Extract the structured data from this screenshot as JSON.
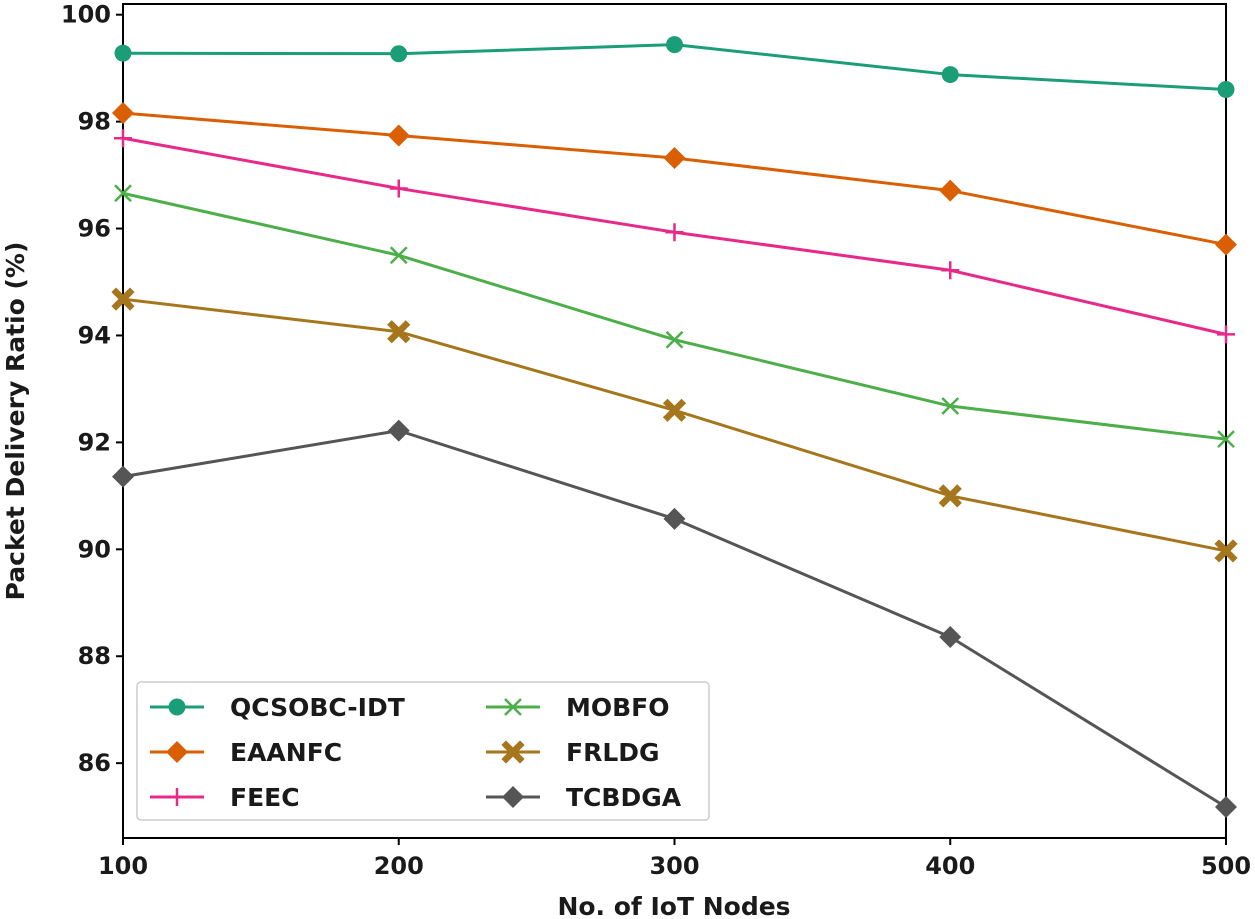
{
  "chart_data": {
    "type": "line",
    "title": "",
    "xlabel": "No. of IoT Nodes",
    "ylabel": "Packet Delivery Ratio (%)",
    "x": [
      100,
      200,
      300,
      400,
      500
    ],
    "xlim": [
      100,
      500
    ],
    "ylim": [
      84.6,
      100.2
    ],
    "xticks": [
      "100",
      "200",
      "300",
      "400",
      "500"
    ],
    "yticks": [
      "86",
      "88",
      "90",
      "92",
      "94",
      "96",
      "98",
      "100"
    ],
    "legend_position": "lower-left",
    "series": [
      {
        "name": "QCSOBC-IDT",
        "color": "#1b9e77",
        "marker": "circle",
        "values": [
          99.28,
          99.27,
          99.44,
          98.88,
          98.6
        ]
      },
      {
        "name": "EAANFC",
        "color": "#d95f02",
        "marker": "diamond",
        "values": [
          98.16,
          97.74,
          97.32,
          96.71,
          95.7
        ]
      },
      {
        "name": "FEEC",
        "color": "#e7298a",
        "marker": "plus",
        "values": [
          97.69,
          96.75,
          95.93,
          95.22,
          94.02
        ]
      },
      {
        "name": "MOBFO",
        "color": "#4daf4a",
        "marker": "x",
        "values": [
          96.66,
          95.5,
          93.92,
          92.68,
          92.06
        ]
      },
      {
        "name": "FRLDG",
        "color": "#a6761d",
        "marker": "xfilled",
        "values": [
          94.68,
          94.07,
          92.6,
          91.0,
          89.97
        ]
      },
      {
        "name": "TCBDGA",
        "color": "#555555",
        "marker": "diamond",
        "values": [
          91.36,
          92.22,
          90.57,
          88.36,
          85.18
        ]
      }
    ]
  }
}
